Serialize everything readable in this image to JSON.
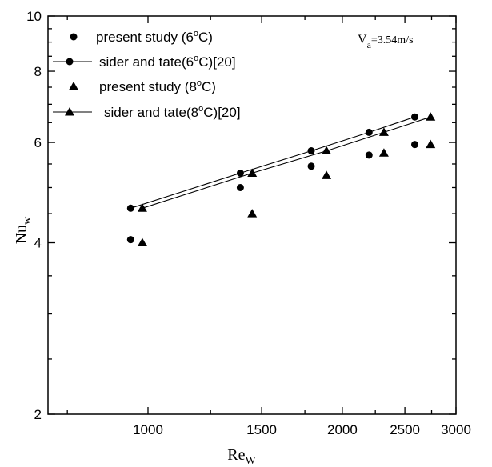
{
  "chart_data": {
    "type": "scatter",
    "x_scale": "log",
    "y_scale": "log",
    "xlim": [
      700,
      3000
    ],
    "ylim": [
      2,
      10
    ],
    "x_ticks": [
      1000,
      1500,
      2000,
      2500,
      3000
    ],
    "x_tick_labels": [
      "1000",
      "1500",
      "2000",
      "2500",
      "3000"
    ],
    "y_ticks": [
      2,
      4,
      6,
      8,
      10
    ],
    "y_tick_labels": [
      "2",
      "4",
      "6",
      "8",
      "10"
    ],
    "xlabel": "Re",
    "xlabel_sub": "W",
    "ylabel": "Nu",
    "ylabel_sub": "w",
    "annotation": {
      "main": "V",
      "sub": "a",
      "rest": "=3.54m/s"
    },
    "legend_position": "top-left",
    "grid": false,
    "series": [
      {
        "name": "present study (6°C)",
        "label_parts": [
          "present study (6",
          "o",
          "C)"
        ],
        "marker": "circle",
        "line": false,
        "x": [
          940,
          1390,
          1790,
          2200,
          2590
        ],
        "y": [
          4.05,
          5.0,
          5.45,
          5.7,
          5.95
        ]
      },
      {
        "name": "sider and tate(6°C)[20]",
        "label_parts": [
          "sider and tate(6",
          "o",
          "C)[20]"
        ],
        "marker": "circle",
        "line": true,
        "x": [
          940,
          1390,
          1790,
          2200,
          2590
        ],
        "y": [
          4.6,
          5.3,
          5.8,
          6.25,
          6.65
        ]
      },
      {
        "name": "present study (8°C)",
        "label_parts": [
          "present study (8",
          "o",
          "C)"
        ],
        "marker": "triangle",
        "line": false,
        "x": [
          980,
          1450,
          1890,
          2320,
          2740
        ],
        "y": [
          4.0,
          4.5,
          5.25,
          5.75,
          5.95
        ]
      },
      {
        "name": "sider and tate(8°C)[20]",
        "label_parts": [
          "sider and tate(8",
          "o",
          "C)[20]"
        ],
        "marker": "triangle",
        "line": true,
        "x": [
          980,
          1450,
          1890,
          2320,
          2740
        ],
        "y": [
          4.6,
          5.3,
          5.8,
          6.25,
          6.65
        ]
      }
    ]
  },
  "colors": {
    "ink": "#000000",
    "background": "#ffffff"
  }
}
